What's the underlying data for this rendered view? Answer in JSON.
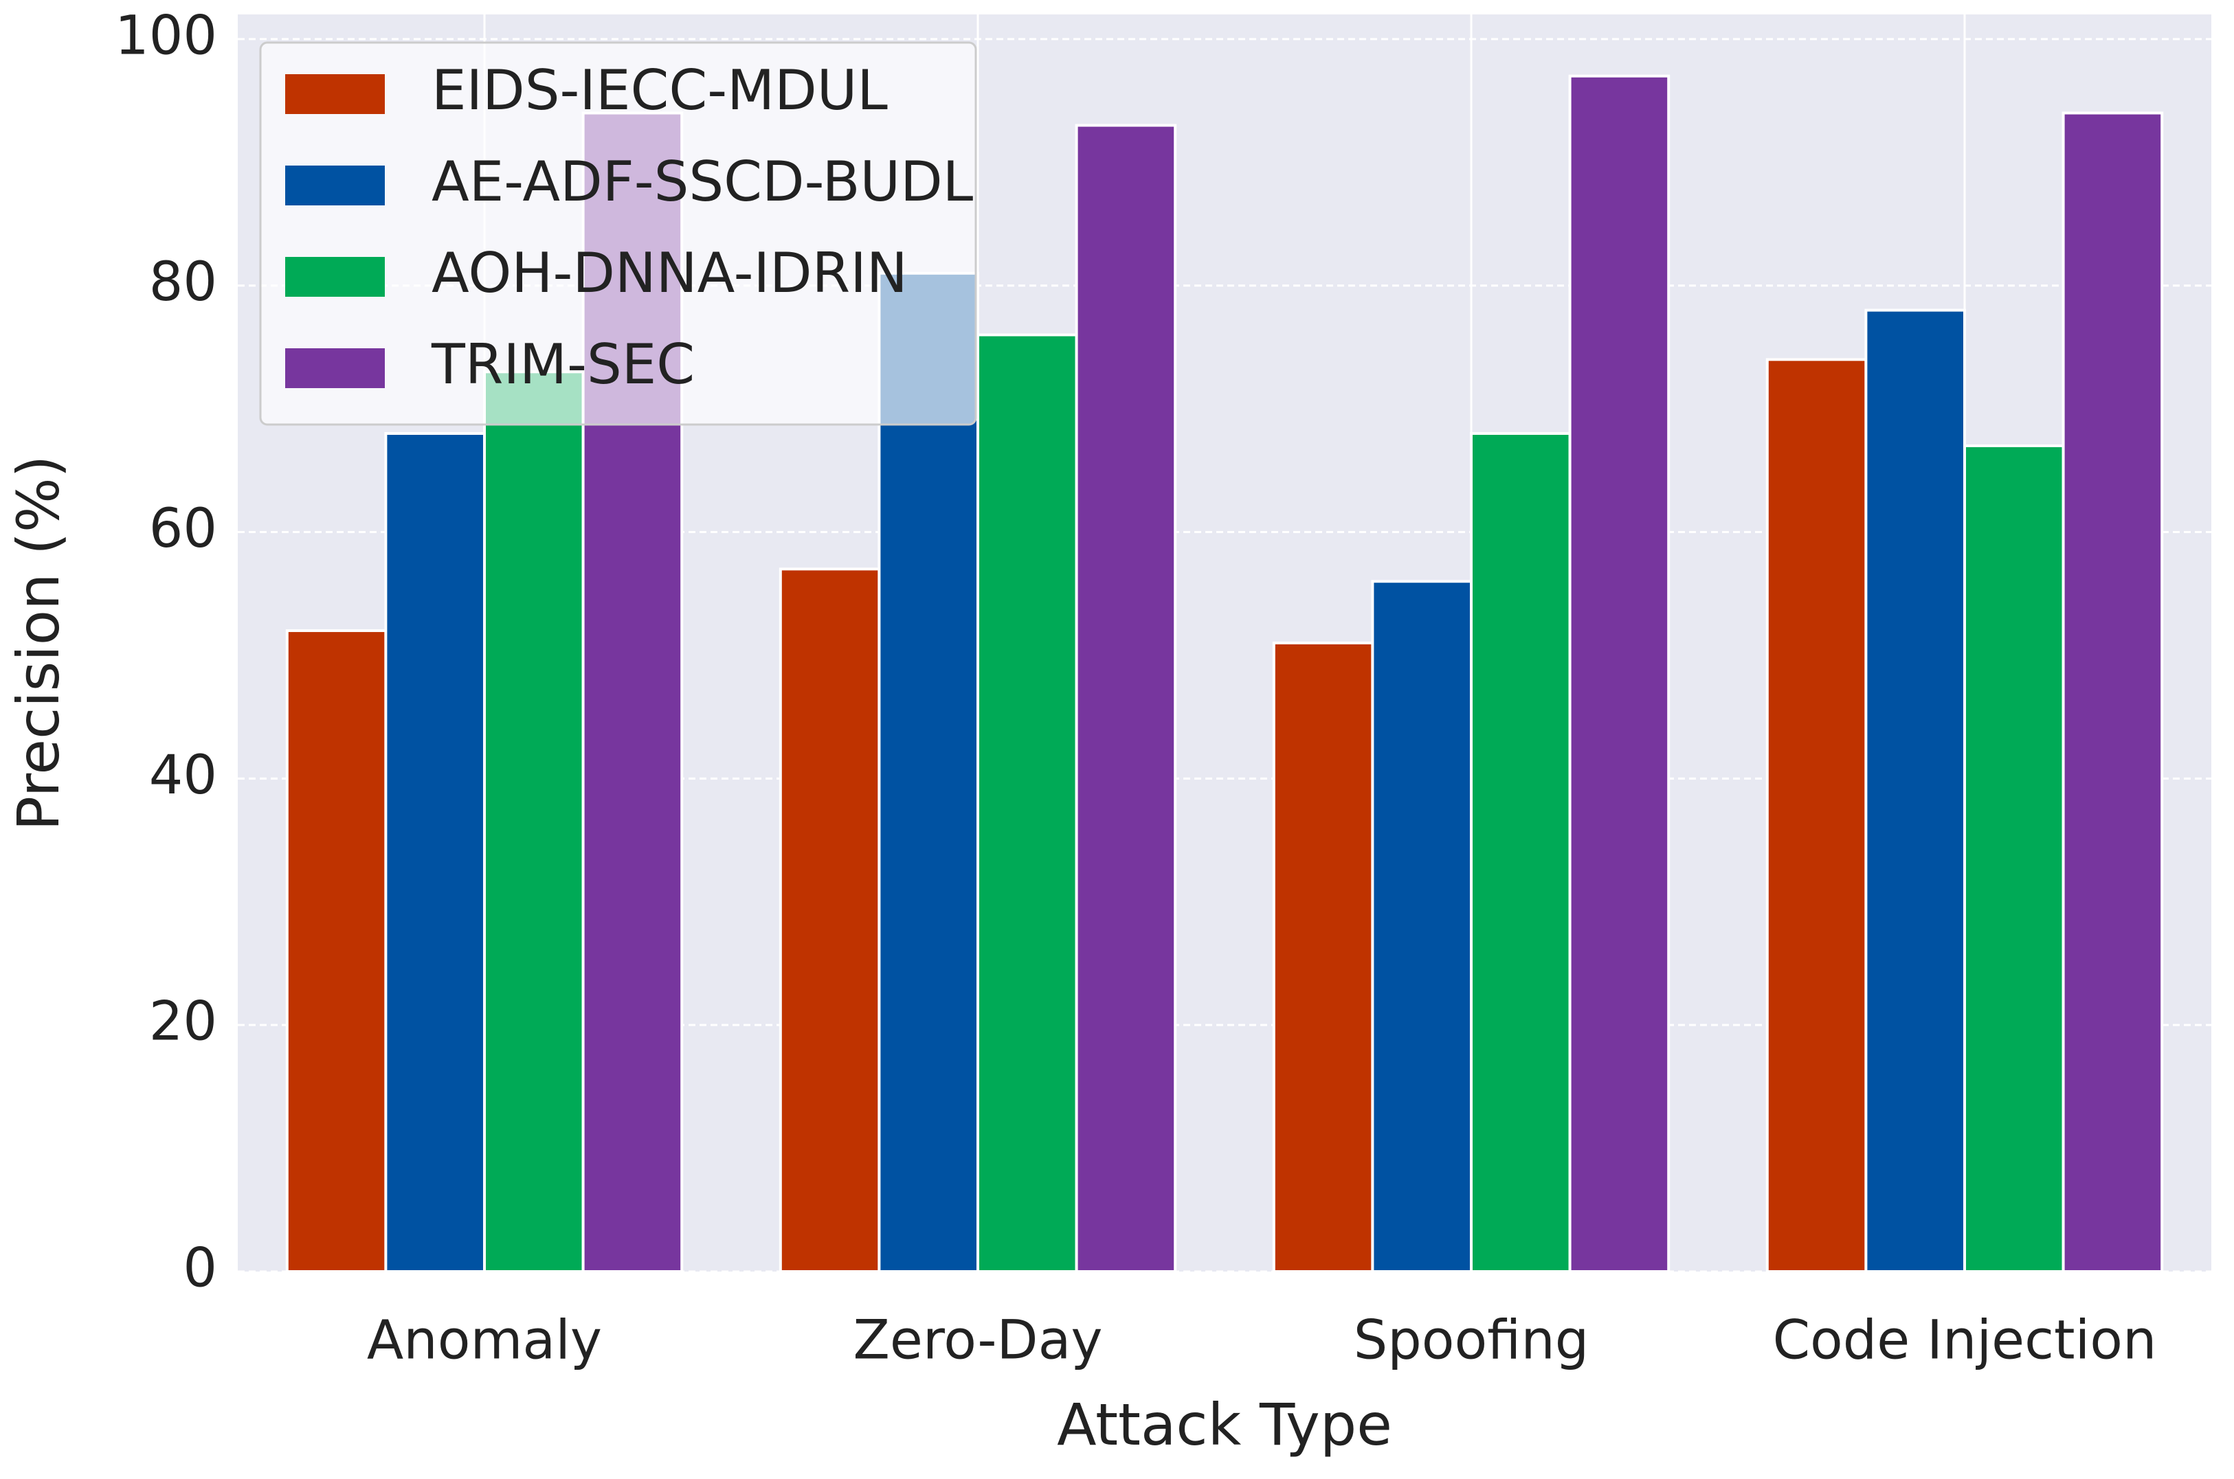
{
  "chart_data": {
    "type": "bar",
    "x_label": "Attack Type",
    "y_label": "Precision (%)",
    "categories": [
      "Anomaly",
      "Zero-Day",
      "Spoofing",
      "Code Injection"
    ],
    "series": [
      {
        "name": "EIDS-IECC-MDUL",
        "color": "#bf3300",
        "values": [
          52,
          57,
          51,
          74
        ]
      },
      {
        "name": "AE-ADF-SSCD-BUDL",
        "color": "#0052a2",
        "values": [
          68,
          81,
          56,
          78
        ]
      },
      {
        "name": "AOH-DNNA-IDRIN",
        "color": "#00aa56",
        "values": [
          73,
          76,
          68,
          67
        ]
      },
      {
        "name": "TRIM-SEC",
        "color": "#77369e",
        "values": [
          94,
          93,
          97,
          94
        ]
      }
    ],
    "ylim": [
      0,
      102
    ],
    "yticks": [
      0,
      20,
      40,
      60,
      80,
      100
    ],
    "grid": true,
    "legend": "upper left"
  }
}
